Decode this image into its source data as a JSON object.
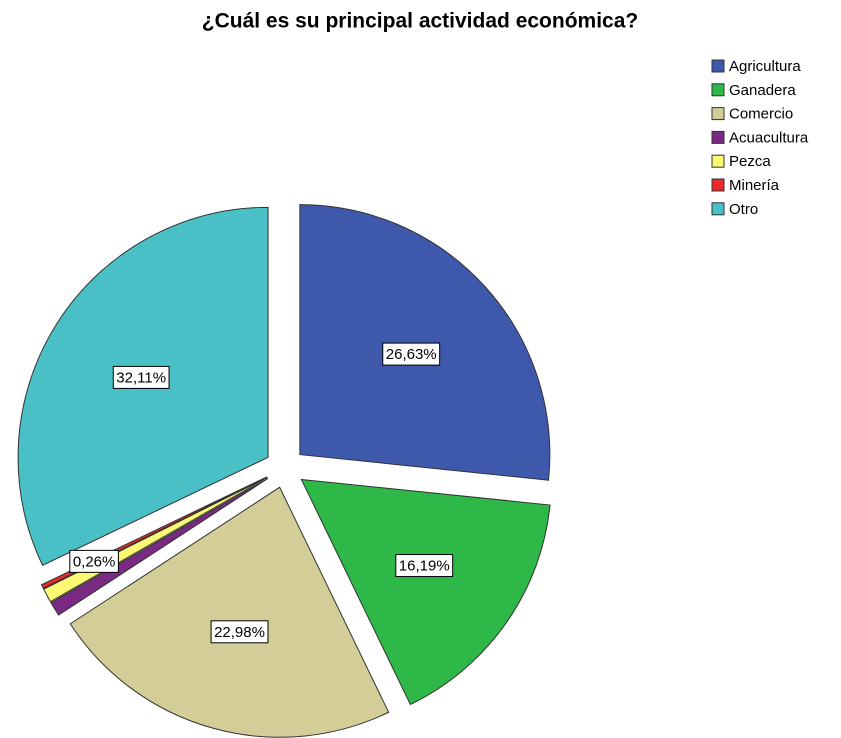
{
  "chart_data": {
    "type": "pie",
    "title": "¿Cuál es su principal actividad económica?",
    "categories": [
      "Agricultura",
      "Ganadera",
      "Comercio",
      "Acuacultura",
      "Pezca",
      "Minería",
      "Otro"
    ],
    "values": [
      26.63,
      16.19,
      22.98,
      0.92,
      0.91,
      0.26,
      32.11
    ],
    "value_labels": [
      "26,63%",
      "16,19%",
      "22,98%",
      null,
      null,
      "0,26%",
      "32,11%"
    ],
    "colors": [
      "#3e58ac",
      "#2eb848",
      "#d3ce97",
      "#7b2a83",
      "#fbf873",
      "#e8282b",
      "#48c0c5"
    ],
    "legend": "top-right"
  }
}
